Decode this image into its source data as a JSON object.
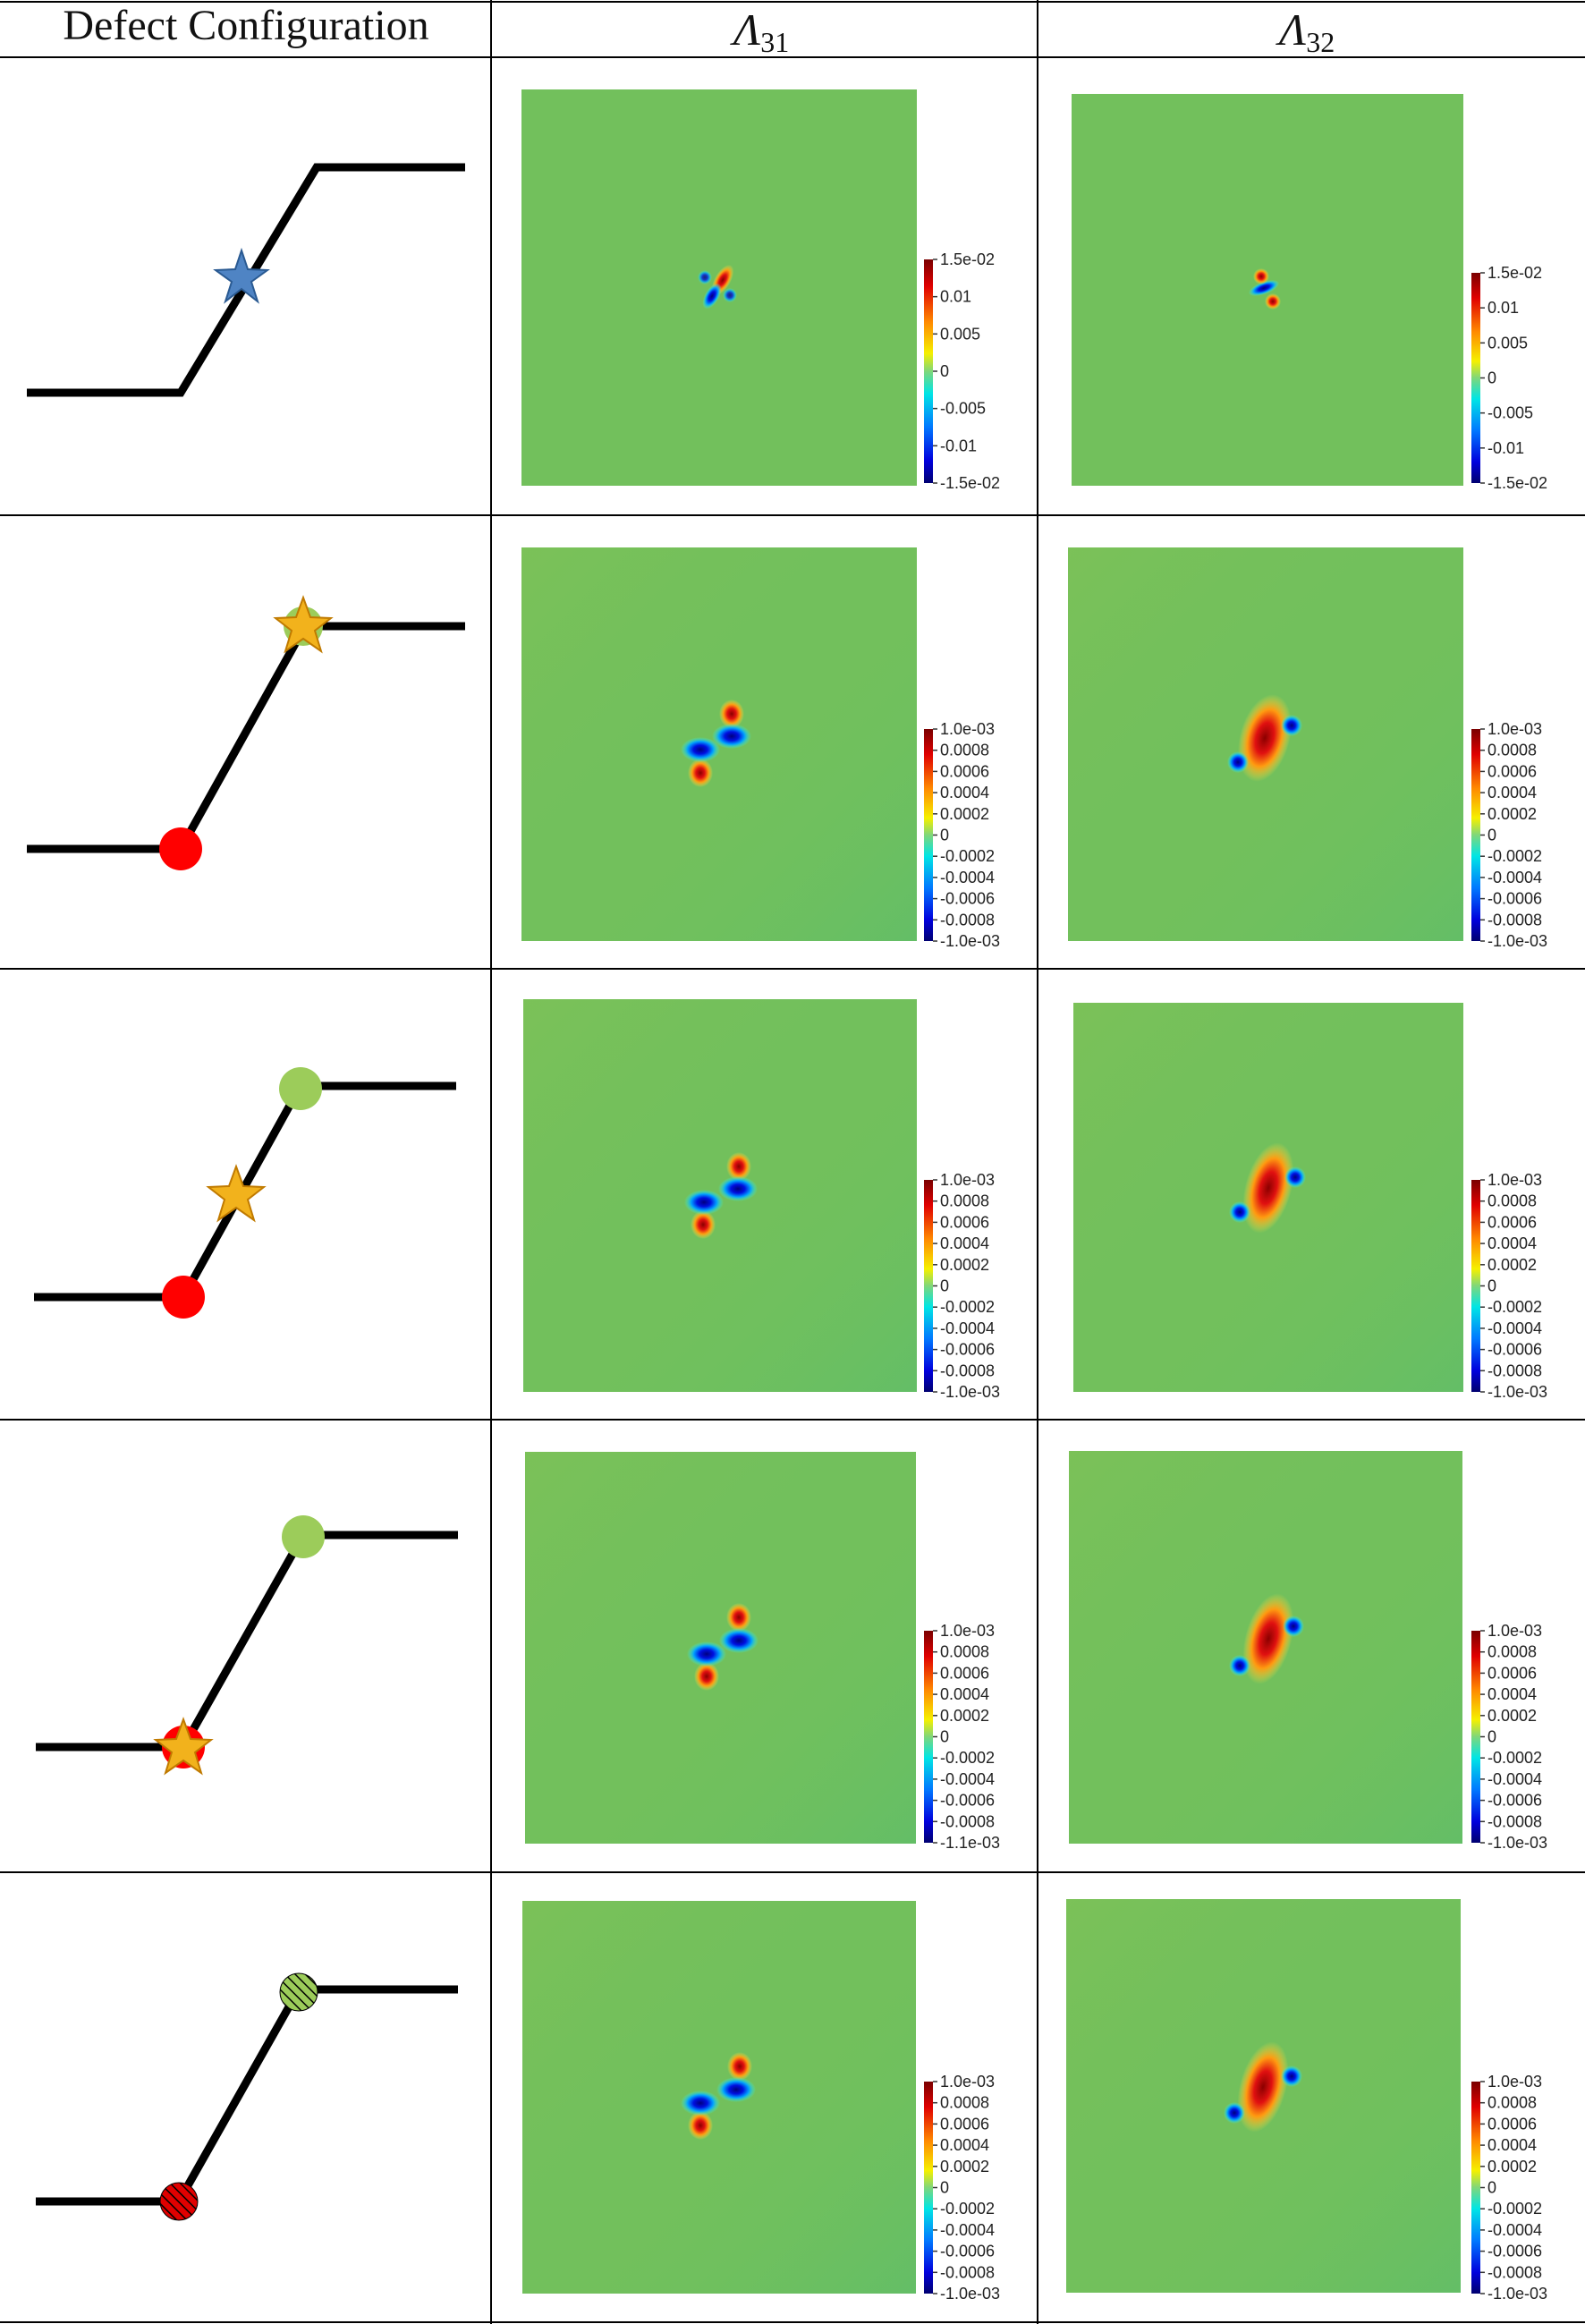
{
  "header": {
    "col1": "Defect Configuration",
    "col2": {
      "symbol": "Λ",
      "subscript": "31"
    },
    "col3": {
      "symbol": "Λ",
      "subscript": "32"
    }
  },
  "colors": {
    "line": "#000000",
    "grid": "#000000",
    "field_base": "#72c05c",
    "star_blue": "#4f84c4",
    "star_gold": "#f2b21c",
    "dot_red": "#ff0000",
    "dot_green": "#9ccc5a"
  },
  "rows": [
    {
      "config": {
        "markers": [
          "blue-star-mid"
        ]
      },
      "maps": [
        {
          "colorbar": {
            "ticks": [
              "1.5e-02",
              "0.01",
              "0.005",
              "0",
              "-0.005",
              "-0.01",
              "-1.5e-02"
            ]
          }
        },
        {
          "colorbar": {
            "ticks": [
              "1.5e-02",
              "0.01",
              "0.005",
              "0",
              "-0.005",
              "-0.01",
              "-1.5e-02"
            ]
          }
        }
      ]
    },
    {
      "config": {
        "markers": [
          "red-dot-bottom",
          "green-dot-top",
          "gold-star-top"
        ]
      },
      "maps": [
        {
          "colorbar": {
            "ticks": [
              "1.0e-03",
              "0.0008",
              "0.0006",
              "0.0004",
              "0.0002",
              "0",
              "-0.0002",
              "-0.0004",
              "-0.0006",
              "-0.0008",
              "-1.0e-03"
            ]
          }
        },
        {
          "colorbar": {
            "ticks": [
              "1.0e-03",
              "0.0008",
              "0.0006",
              "0.0004",
              "0.0002",
              "0",
              "-0.0002",
              "-0.0004",
              "-0.0006",
              "-0.0008",
              "-1.0e-03"
            ]
          }
        }
      ]
    },
    {
      "config": {
        "markers": [
          "red-dot-bottom",
          "green-dot-top",
          "gold-star-mid"
        ]
      },
      "maps": [
        {
          "colorbar": {
            "ticks": [
              "1.0e-03",
              "0.0008",
              "0.0006",
              "0.0004",
              "0.0002",
              "0",
              "-0.0002",
              "-0.0004",
              "-0.0006",
              "-0.0008",
              "-1.0e-03"
            ]
          }
        },
        {
          "colorbar": {
            "ticks": [
              "1.0e-03",
              "0.0008",
              "0.0006",
              "0.0004",
              "0.0002",
              "0",
              "-0.0002",
              "-0.0004",
              "-0.0006",
              "-0.0008",
              "-1.0e-03"
            ]
          }
        }
      ]
    },
    {
      "config": {
        "markers": [
          "red-dot-bottom",
          "green-dot-top",
          "gold-star-bottom"
        ]
      },
      "maps": [
        {
          "colorbar": {
            "ticks": [
              "1.0e-03",
              "0.0008",
              "0.0006",
              "0.0004",
              "0.0002",
              "0",
              "-0.0002",
              "-0.0004",
              "-0.0006",
              "-0.0008",
              "-1.1e-03"
            ]
          }
        },
        {
          "colorbar": {
            "ticks": [
              "1.0e-03",
              "0.0008",
              "0.0006",
              "0.0004",
              "0.0002",
              "0",
              "-0.0002",
              "-0.0004",
              "-0.0006",
              "-0.0008",
              "-1.0e-03"
            ]
          }
        }
      ]
    },
    {
      "config": {
        "markers": [
          "hatched-red-dot-bottom",
          "hatched-green-dot-top"
        ]
      },
      "maps": [
        {
          "colorbar": {
            "ticks": [
              "1.0e-03",
              "0.0008",
              "0.0006",
              "0.0004",
              "0.0002",
              "0",
              "-0.0002",
              "-0.0004",
              "-0.0006",
              "-0.0008",
              "-1.0e-03"
            ]
          }
        },
        {
          "colorbar": {
            "ticks": [
              "1.0e-03",
              "0.0008",
              "0.0006",
              "0.0004",
              "0.0002",
              "0",
              "-0.0002",
              "-0.0004",
              "-0.0006",
              "-0.0008",
              "-1.0e-03"
            ]
          }
        }
      ]
    }
  ]
}
